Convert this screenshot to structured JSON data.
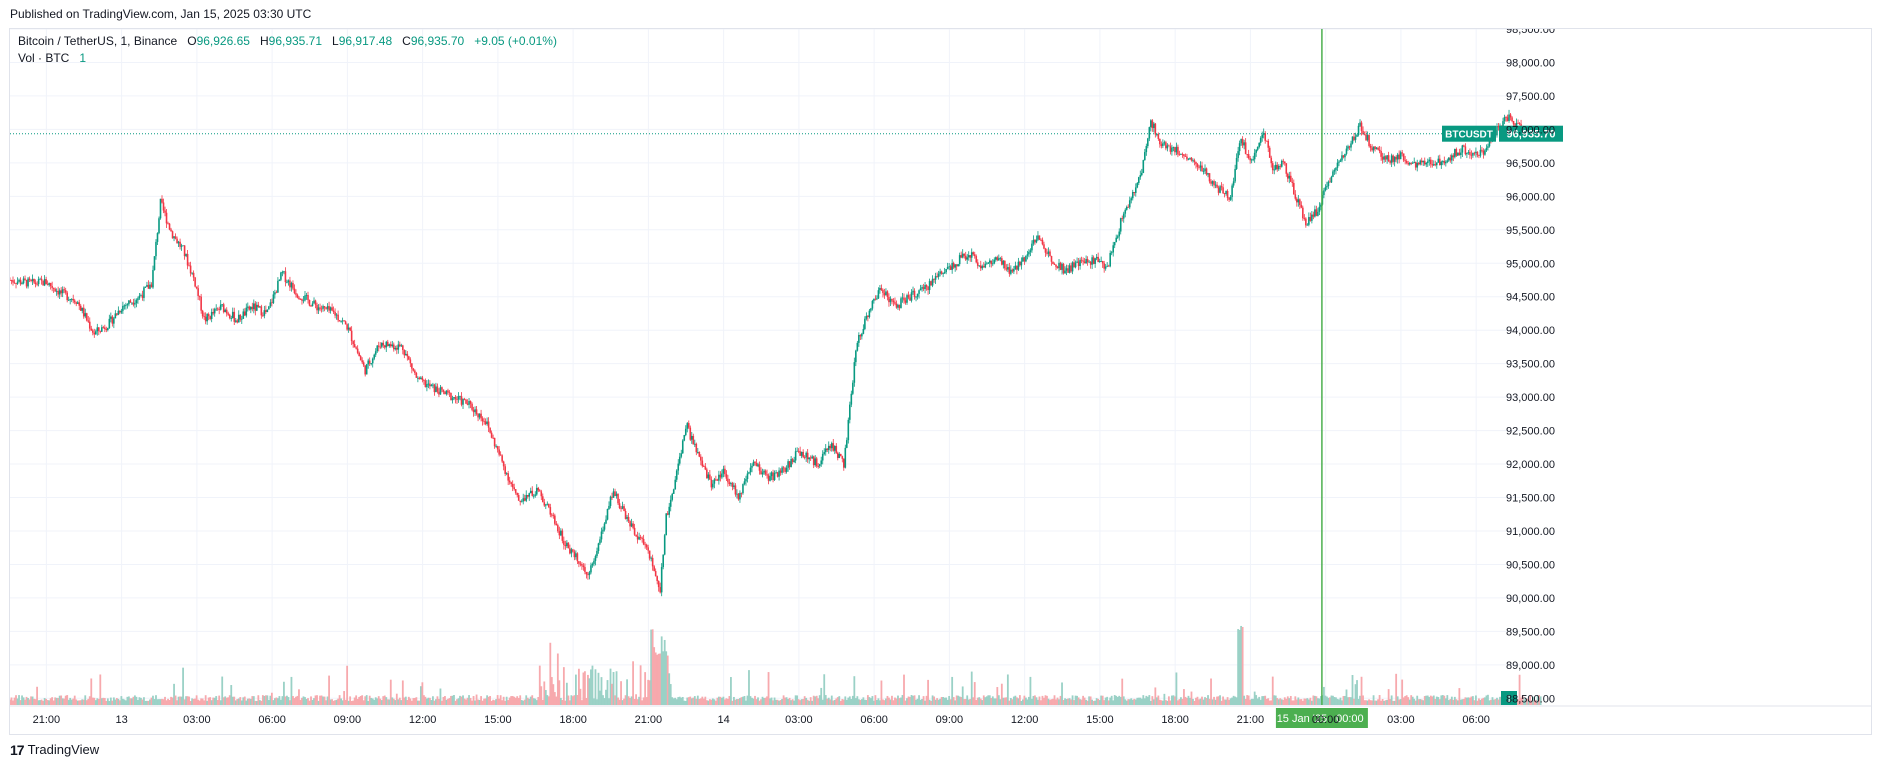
{
  "header": {
    "published": "Published on TradingView.com, Jan 15, 2025 03:30 UTC"
  },
  "legend": {
    "symbol": "Bitcoin / TetherUS, 1, Binance",
    "o_label": "O",
    "o_value": "96,926.65",
    "h_label": "H",
    "h_value": "96,935.71",
    "l_label": "L",
    "l_value": "96,917.48",
    "c_label": "C",
    "c_value": "96,935.70",
    "change": "+9.05 (+0.01%)",
    "vol_label": "Vol · BTC",
    "vol_value": "1"
  },
  "price_tag": {
    "symbol": "BTCUSDT",
    "value": "96,935.70"
  },
  "volume_tag": "1",
  "crosshair_label": {
    "date": "15 Jan '25",
    "time": "00:00"
  },
  "footer": {
    "brand": "TradingView",
    "logo_glyph": "17"
  },
  "colors": {
    "up": "#089981",
    "down": "#f23645",
    "volume_up": "#9ad1c6",
    "volume_down": "#f7a9ad",
    "grid": "#f0f3fa",
    "axis_text": "#131722",
    "crosshair": "#4caf50",
    "price_line": "#089981"
  },
  "chart_data": {
    "type": "candlestick",
    "symbol": "Bitcoin / TetherUS",
    "interval": "1",
    "exchange": "Binance",
    "y_ticks": [
      "98,500.00",
      "98,000.00",
      "97,500.00",
      "97,000.00",
      "96,500.00",
      "96,000.00",
      "95,500.00",
      "95,000.00",
      "94,500.00",
      "94,000.00",
      "93,500.00",
      "93,000.00",
      "92,500.00",
      "92,000.00",
      "91,500.00",
      "91,000.00",
      "90,500.00",
      "90,000.00",
      "89,500.00",
      "89,000.00",
      "88,500.00"
    ],
    "ylim": [
      88400,
      98500
    ],
    "x_ticks": [
      "21:00",
      "13",
      "03:00",
      "06:00",
      "09:00",
      "12:00",
      "15:00",
      "18:00",
      "21:00",
      "14",
      "03:00",
      "06:00",
      "09:00",
      "12:00",
      "15:00",
      "18:00",
      "21:00",
      "00:00",
      "03:00",
      "06:00"
    ],
    "x_tick_hours": [
      0,
      3,
      6,
      9,
      12,
      15,
      18,
      21,
      24,
      27,
      30,
      33,
      36,
      39,
      42,
      45,
      48,
      51,
      54,
      57
    ],
    "x_range_hours": [
      -1.45,
      57.95
    ],
    "last_price": 96935.7,
    "crosshair_hour": 50.85,
    "price_path": [
      [
        -1.45,
        94750
      ],
      [
        -0.6,
        94700
      ],
      [
        0.0,
        94720
      ],
      [
        0.6,
        94550
      ],
      [
        1.2,
        94450
      ],
      [
        1.9,
        93950
      ],
      [
        2.5,
        94100
      ],
      [
        3.0,
        94350
      ],
      [
        3.7,
        94500
      ],
      [
        4.2,
        94700
      ],
      [
        4.55,
        95900
      ],
      [
        5.0,
        95450
      ],
      [
        5.45,
        95200
      ],
      [
        5.9,
        94750
      ],
      [
        6.3,
        94150
      ],
      [
        7.0,
        94350
      ],
      [
        7.6,
        94150
      ],
      [
        8.2,
        94350
      ],
      [
        8.8,
        94250
      ],
      [
        9.4,
        94850
      ],
      [
        10.0,
        94550
      ],
      [
        10.8,
        94350
      ],
      [
        11.5,
        94250
      ],
      [
        12.0,
        94050
      ],
      [
        12.7,
        93400
      ],
      [
        13.3,
        93800
      ],
      [
        14.2,
        93750
      ],
      [
        14.8,
        93250
      ],
      [
        15.6,
        93100
      ],
      [
        16.2,
        93000
      ],
      [
        16.8,
        92900
      ],
      [
        17.5,
        92650
      ],
      [
        18.2,
        92000
      ],
      [
        18.8,
        91450
      ],
      [
        19.6,
        91600
      ],
      [
        20.2,
        91200
      ],
      [
        20.7,
        90800
      ],
      [
        21.2,
        90600
      ],
      [
        21.6,
        90350
      ],
      [
        22.1,
        90900
      ],
      [
        22.6,
        91600
      ],
      [
        23.1,
        91200
      ],
      [
        23.6,
        90900
      ],
      [
        24.0,
        90700
      ],
      [
        24.45,
        90050
      ],
      [
        24.7,
        91200
      ],
      [
        25.1,
        91800
      ],
      [
        25.5,
        92600
      ],
      [
        26.0,
        92100
      ],
      [
        26.5,
        91700
      ],
      [
        27.0,
        91900
      ],
      [
        27.6,
        91500
      ],
      [
        28.2,
        92000
      ],
      [
        28.8,
        91800
      ],
      [
        29.4,
        91900
      ],
      [
        30.0,
        92200
      ],
      [
        30.7,
        92000
      ],
      [
        31.3,
        92300
      ],
      [
        31.8,
        92000
      ],
      [
        32.3,
        93800
      ],
      [
        32.8,
        94300
      ],
      [
        33.3,
        94650
      ],
      [
        33.8,
        94350
      ],
      [
        34.4,
        94500
      ],
      [
        35.0,
        94600
      ],
      [
        35.6,
        94850
      ],
      [
        36.2,
        95000
      ],
      [
        36.8,
        95150
      ],
      [
        37.3,
        94950
      ],
      [
        37.9,
        95050
      ],
      [
        38.5,
        94850
      ],
      [
        39.0,
        95100
      ],
      [
        39.5,
        95400
      ],
      [
        40.0,
        95100
      ],
      [
        40.6,
        94900
      ],
      [
        41.2,
        95000
      ],
      [
        41.8,
        95050
      ],
      [
        42.3,
        94950
      ],
      [
        42.9,
        95700
      ],
      [
        43.3,
        96000
      ],
      [
        43.7,
        96400
      ],
      [
        44.0,
        97150
      ],
      [
        44.4,
        96800
      ],
      [
        45.0,
        96700
      ],
      [
        45.6,
        96550
      ],
      [
        46.1,
        96400
      ],
      [
        46.7,
        96100
      ],
      [
        47.2,
        96000
      ],
      [
        47.6,
        96900
      ],
      [
        48.0,
        96500
      ],
      [
        48.5,
        97000
      ],
      [
        48.9,
        96400
      ],
      [
        49.3,
        96500
      ],
      [
        49.8,
        96000
      ],
      [
        50.2,
        95600
      ],
      [
        50.7,
        95800
      ],
      [
        51.2,
        96300
      ],
      [
        51.8,
        96700
      ],
      [
        52.4,
        97050
      ],
      [
        52.9,
        96700
      ],
      [
        53.4,
        96550
      ],
      [
        54.0,
        96600
      ],
      [
        54.6,
        96450
      ],
      [
        55.2,
        96500
      ],
      [
        55.8,
        96550
      ],
      [
        56.4,
        96700
      ],
      [
        56.9,
        96650
      ],
      [
        57.4,
        96700
      ],
      [
        57.8,
        97000
      ],
      [
        58.2,
        97200
      ],
      [
        58.7,
        97050
      ],
      [
        59.3,
        96900
      ],
      [
        59.6,
        96935.7
      ]
    ]
  }
}
